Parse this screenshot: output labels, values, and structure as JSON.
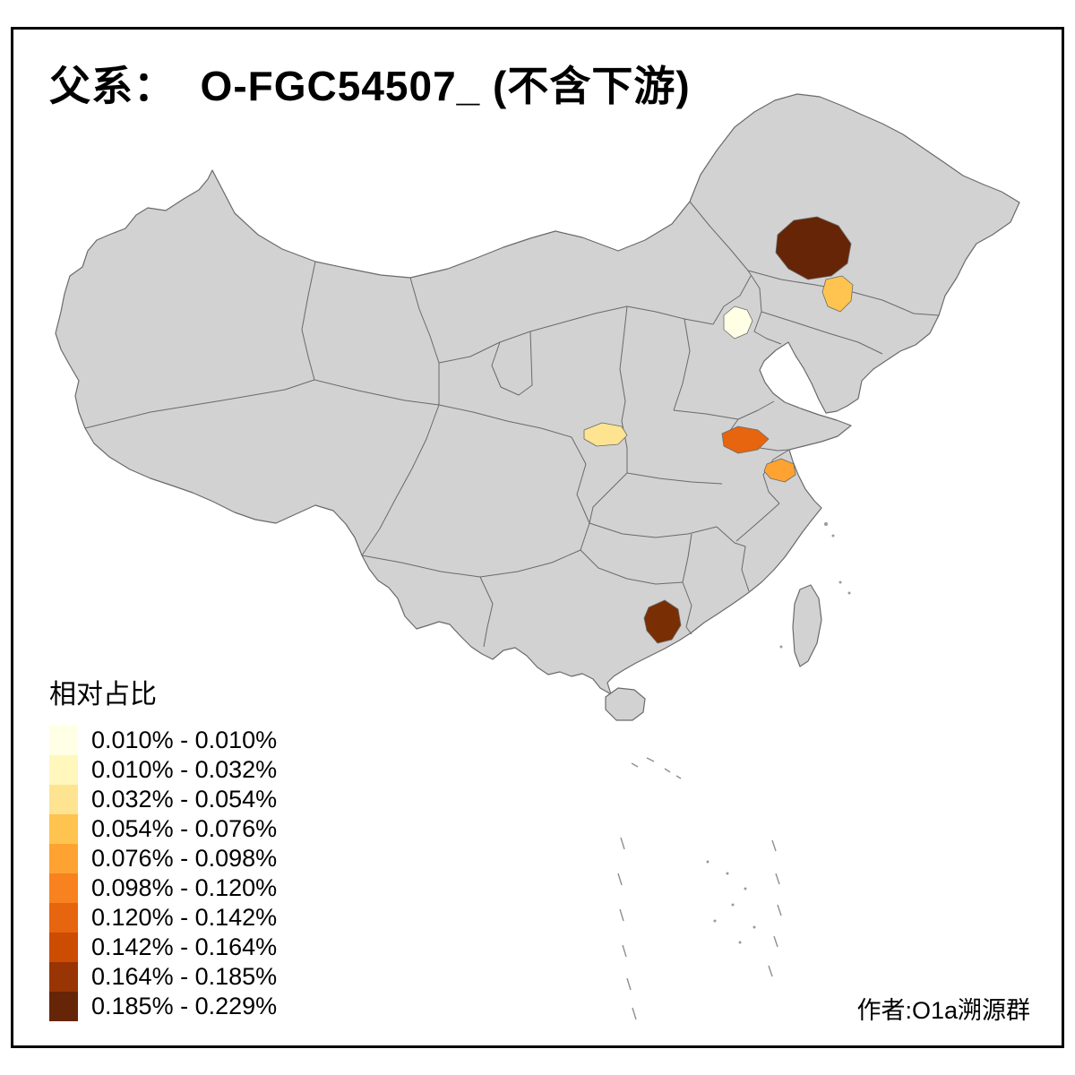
{
  "title": "父系：  O-FGC54507_ (不含下游)",
  "legend": {
    "title": "相对占比",
    "entries": [
      {
        "label": "0.010% - 0.010%",
        "color": "#FFFFE5"
      },
      {
        "label": "0.010% - 0.032%",
        "color": "#FFF7BC"
      },
      {
        "label": "0.032% - 0.054%",
        "color": "#FEE391"
      },
      {
        "label": "0.054% - 0.076%",
        "color": "#FEC44F"
      },
      {
        "label": "0.076% - 0.098%",
        "color": "#FEA331"
      },
      {
        "label": "0.098% - 0.120%",
        "color": "#F8821F"
      },
      {
        "label": "0.120% - 0.142%",
        "color": "#E6650E"
      },
      {
        "label": "0.142% - 0.164%",
        "color": "#CC4C02"
      },
      {
        "label": "0.164% - 0.185%",
        "color": "#993404"
      },
      {
        "label": "0.185% - 0.229%",
        "color": "#662506"
      }
    ]
  },
  "credit": "作者:O1a溯源群",
  "map": {
    "land_fill": "#D2D2D2",
    "border_color": "#6A6A6A",
    "background": "#FFFFFF",
    "regions": [
      {
        "id": "northeast",
        "color": "#662506"
      },
      {
        "id": "jilin",
        "color": "#FEC44F"
      },
      {
        "id": "beijing",
        "color": "#FFFFE5"
      },
      {
        "id": "shaanxi",
        "color": "#FEE391"
      },
      {
        "id": "north-jiangsu",
        "color": "#E6650E"
      },
      {
        "id": "central-jiangsu",
        "color": "#FEA331"
      },
      {
        "id": "guangxi",
        "color": "#7A2E04"
      }
    ]
  }
}
